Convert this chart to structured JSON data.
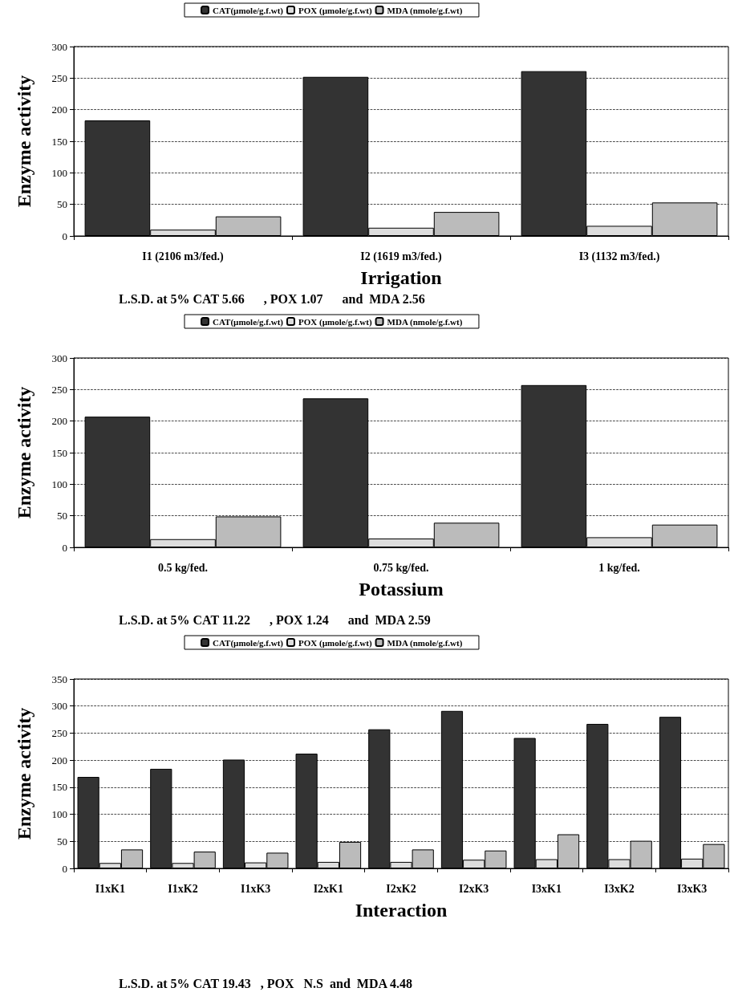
{
  "chart_data": [
    {
      "type": "bar",
      "categories": [
        "I1 (2106 m3/fed.)",
        "I2 (1619 m3/fed.)",
        "I3 (1132 m3/fed.)"
      ],
      "xlabel": "Irrigation",
      "ylabel": "Enzyme activity",
      "series": [
        {
          "name": "CAT(µmole/g.f.wt)",
          "color": "#333333",
          "values": [
            183,
            252,
            261
          ]
        },
        {
          "name": "POX (µmole/g.f.wt)",
          "color": "#dddddd",
          "values": [
            10,
            13,
            16
          ]
        },
        {
          "name": "MDA (nmole/g.f.wt)",
          "color": "#bbbbbb",
          "values": [
            31,
            38,
            53
          ]
        }
      ],
      "ylim": [
        0,
        300
      ],
      "yticks": [
        0,
        50,
        100,
        150,
        200,
        250,
        300
      ],
      "grid": "y",
      "legend": "top",
      "annotations": [
        "L.S.D. at 5% CAT 5.66      , POX 1.07      and  MDA 2.56"
      ]
    },
    {
      "type": "bar",
      "categories": [
        "0.5 kg/fed.",
        "0.75 kg/fed.",
        "1 kg/fed."
      ],
      "xlabel": "Potassium",
      "ylabel": "Enzyme activity",
      "series": [
        {
          "name": "CAT(µmole/g.f.wt)",
          "color": "#333333",
          "values": [
            207,
            236,
            257
          ]
        },
        {
          "name": "POX (µmole/g.f.wt)",
          "color": "#dddddd",
          "values": [
            13,
            14,
            16
          ]
        },
        {
          "name": "MDA (nmole/g.f.wt)",
          "color": "#bbbbbb",
          "values": [
            49,
            39,
            36
          ]
        }
      ],
      "ylim": [
        0,
        300
      ],
      "yticks": [
        0,
        50,
        100,
        150,
        200,
        250,
        300
      ],
      "grid": "y",
      "legend": "top",
      "annotations": [
        "L.S.D. at 5% CAT 11.22      , POX 1.24      and  MDA 2.59"
      ]
    },
    {
      "type": "bar",
      "categories": [
        "I1xK1",
        "I1xK2",
        "I1xK3",
        "I2xK1",
        "I2xK2",
        "I2xK3",
        "I3xK1",
        "I3xK2",
        "I3xK3"
      ],
      "xlabel": "Interaction",
      "ylabel": "Enzyme activity",
      "series": [
        {
          "name": "CAT(µmole/g.f.wt)",
          "color": "#333333",
          "values": [
            169,
            184,
            201,
            212,
            257,
            291,
            241,
            267,
            280
          ]
        },
        {
          "name": "POX (µmole/g.f.wt)",
          "color": "#dddddd",
          "values": [
            10,
            10,
            11,
            12,
            12,
            16,
            17,
            17,
            18
          ]
        },
        {
          "name": "MDA (nmole/g.f.wt)",
          "color": "#bbbbbb",
          "values": [
            35,
            31,
            29,
            49,
            35,
            33,
            63,
            51,
            45
          ]
        }
      ],
      "ylim": [
        0,
        350
      ],
      "yticks": [
        0,
        50,
        100,
        150,
        200,
        250,
        300,
        350
      ],
      "grid": "y",
      "legend": "top",
      "annotations": [
        "L.S.D. at 5% CAT 19.43   , POX   N.S  and  MDA 4.48"
      ]
    }
  ]
}
